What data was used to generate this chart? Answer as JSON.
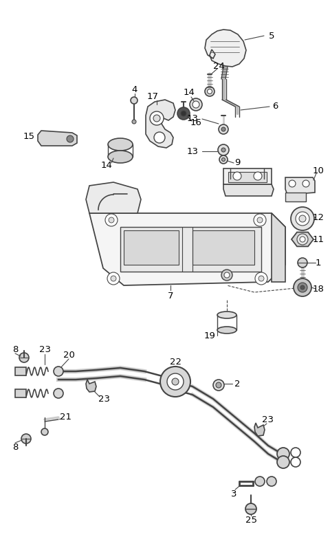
{
  "bg": "#ffffff",
  "lc": "#444444",
  "figsize": [
    4.8,
    7.94
  ],
  "dpi": 100
}
